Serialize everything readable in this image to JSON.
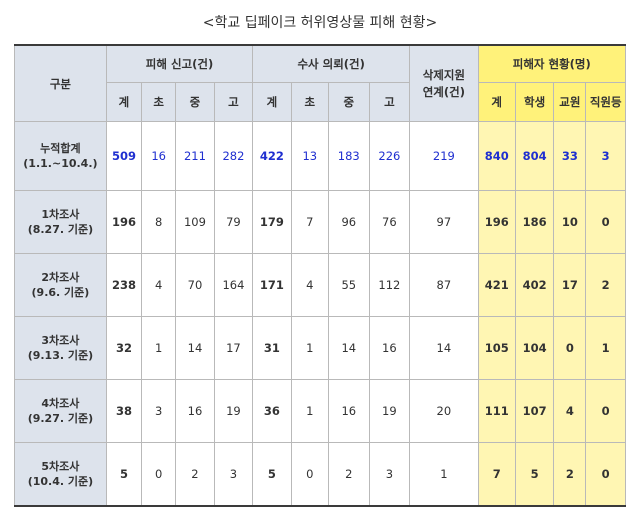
{
  "title": "<학교 딥페이크 허위영상물 피해 현황>",
  "headers": {
    "category": "구분",
    "reports": "피해 신고(건)",
    "investigation": "수사 의뢰(건)",
    "deletion": "삭제지원 연계(건)",
    "victims": "피해자 현황(명)",
    "sub": {
      "total": "계",
      "elementary": "초",
      "middle": "중",
      "high": "고",
      "students": "학생",
      "teachers": "교원",
      "staff": "직원등"
    }
  },
  "rows": [
    {
      "label1": "누적합계",
      "label2": "(1.1.~10.4.)",
      "r_total": "509",
      "r_e": "16",
      "r_m": "211",
      "r_h": "282",
      "i_total": "422",
      "i_e": "13",
      "i_m": "183",
      "i_h": "226",
      "del": "219",
      "v_total": "840",
      "v_s": "804",
      "v_t": "33",
      "v_o": "3"
    },
    {
      "label1": "1차조사",
      "label2": "(8.27. 기준)",
      "r_total": "196",
      "r_e": "8",
      "r_m": "109",
      "r_h": "79",
      "i_total": "179",
      "i_e": "7",
      "i_m": "96",
      "i_h": "76",
      "del": "97",
      "v_total": "196",
      "v_s": "186",
      "v_t": "10",
      "v_o": "0"
    },
    {
      "label1": "2차조사",
      "label2": "(9.6. 기준)",
      "r_total": "238",
      "r_e": "4",
      "r_m": "70",
      "r_h": "164",
      "i_total": "171",
      "i_e": "4",
      "i_m": "55",
      "i_h": "112",
      "del": "87",
      "v_total": "421",
      "v_s": "402",
      "v_t": "17",
      "v_o": "2"
    },
    {
      "label1": "3차조사",
      "label2": "(9.13. 기준)",
      "r_total": "32",
      "r_e": "1",
      "r_m": "14",
      "r_h": "17",
      "i_total": "31",
      "i_e": "1",
      "i_m": "14",
      "i_h": "16",
      "del": "14",
      "v_total": "105",
      "v_s": "104",
      "v_t": "0",
      "v_o": "1"
    },
    {
      "label1": "4차조사",
      "label2": "(9.27. 기준)",
      "r_total": "38",
      "r_e": "3",
      "r_m": "16",
      "r_h": "19",
      "i_total": "36",
      "i_e": "1",
      "i_m": "16",
      "i_h": "19",
      "del": "20",
      "v_total": "111",
      "v_s": "107",
      "v_t": "4",
      "v_o": "0"
    },
    {
      "label1": "5차조사",
      "label2": "(10.4. 기준)",
      "r_total": "5",
      "r_e": "0",
      "r_m": "2",
      "r_h": "3",
      "i_total": "5",
      "i_e": "0",
      "i_m": "2",
      "i_h": "3",
      "del": "1",
      "v_total": "7",
      "v_s": "5",
      "v_t": "2",
      "v_o": "0"
    }
  ]
}
